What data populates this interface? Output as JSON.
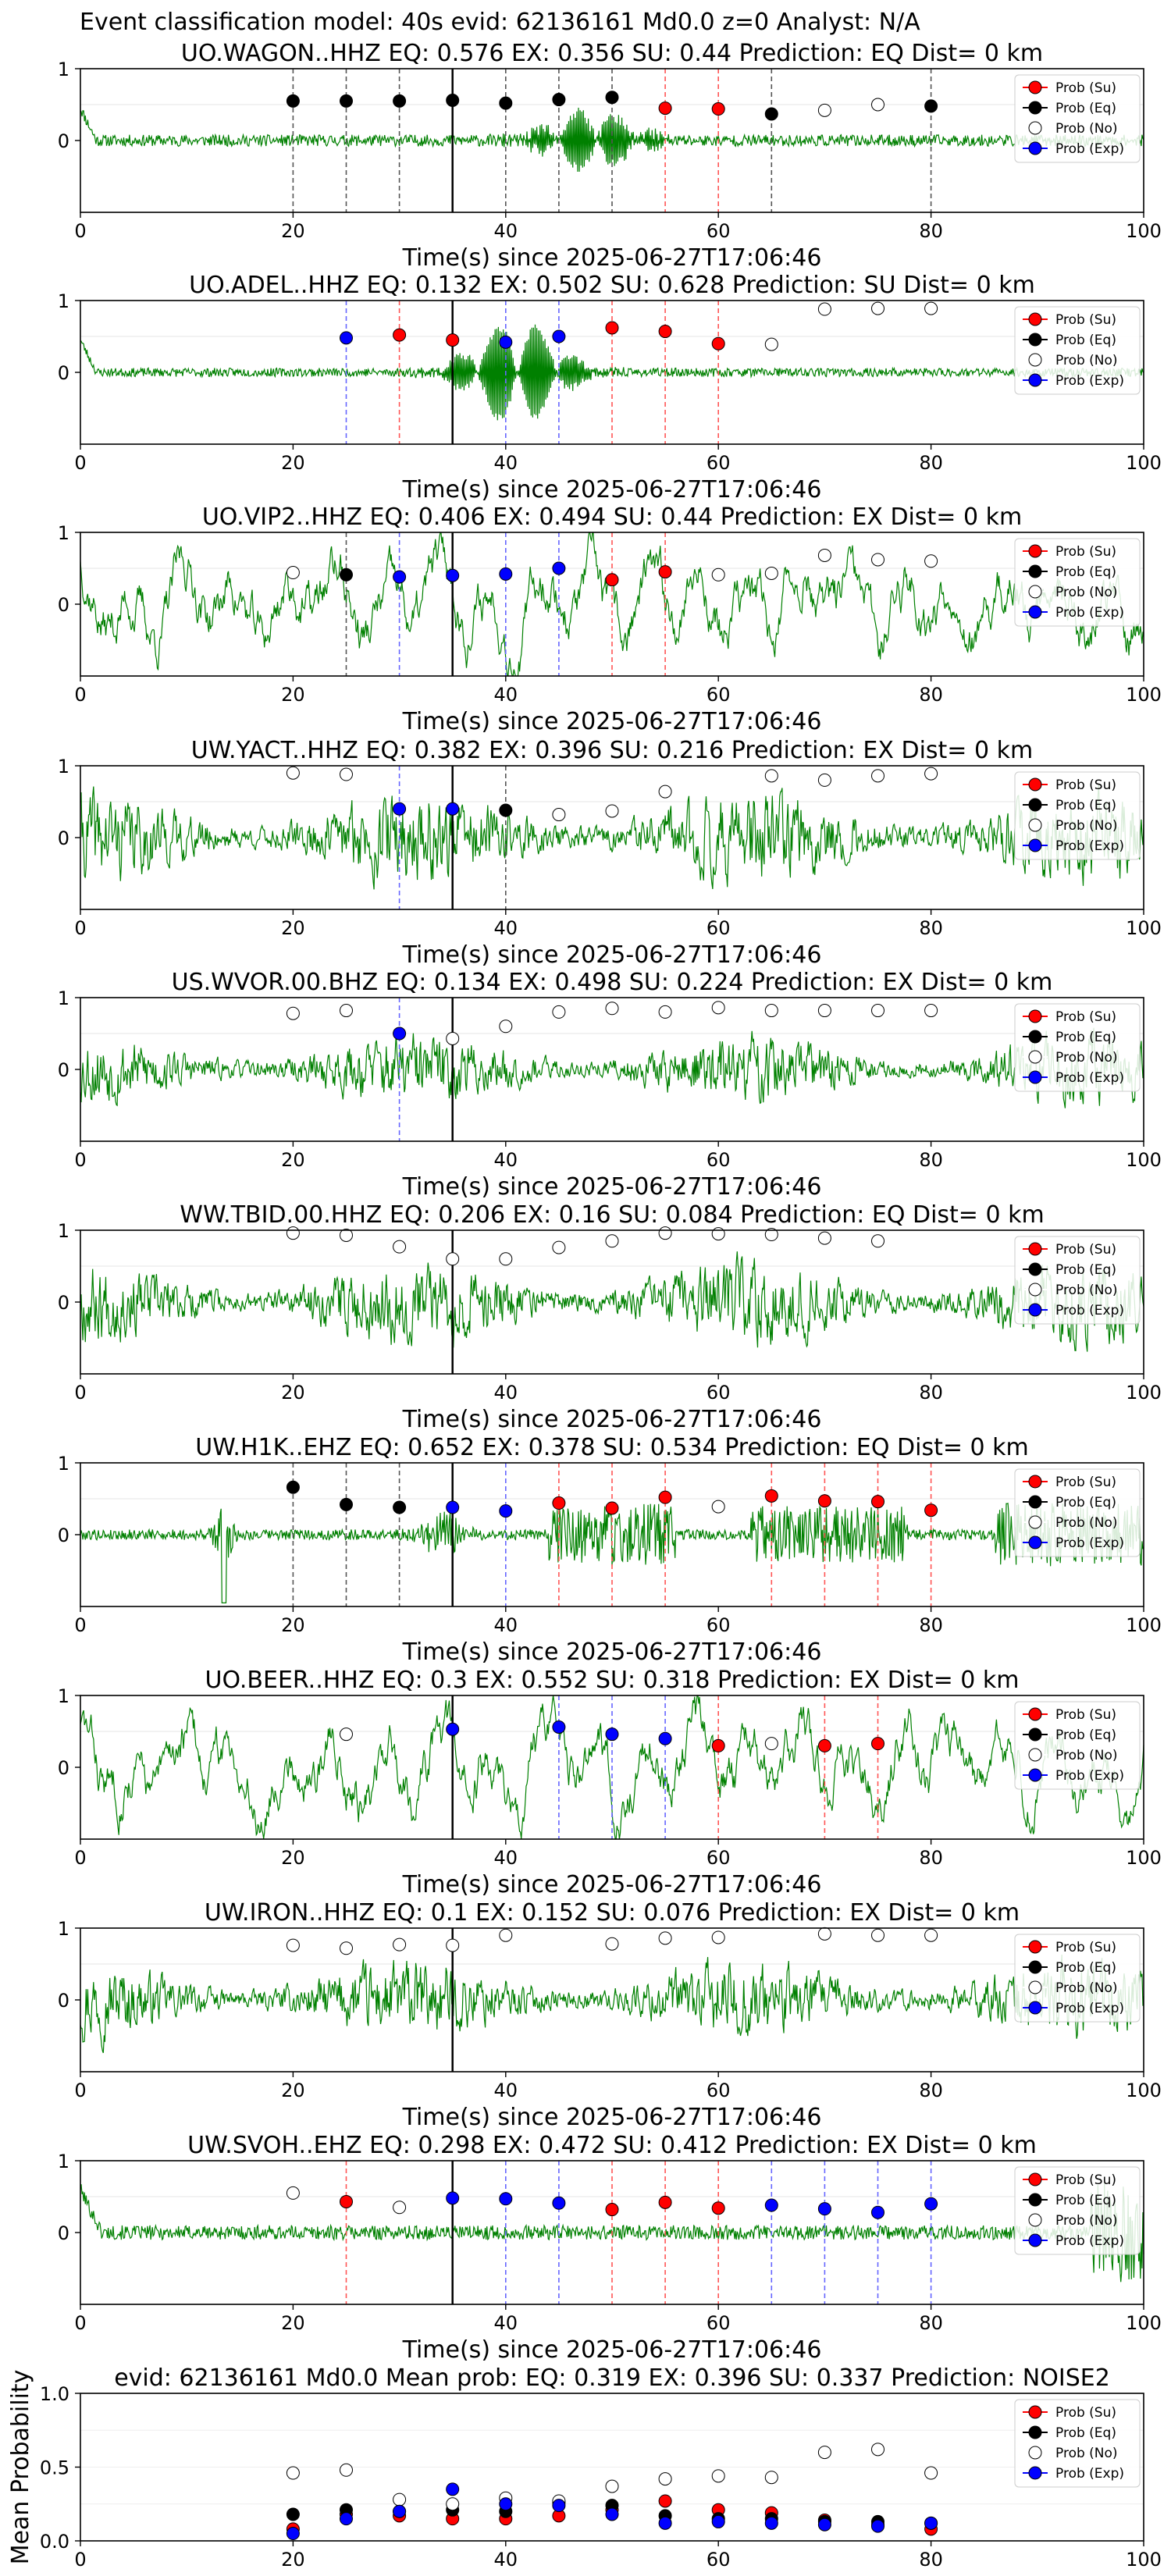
{
  "figure": {
    "title": "Event classification model: 40s evid: 62136161 Md0.0 z=0 Analyst: N/A",
    "x_label": "Time(s) since 2025-06-27T17:06:46",
    "colors": {
      "su": "#ff0000",
      "eq": "#000000",
      "no": "#ffffff",
      "exp": "#0000ff",
      "trace": "#008000"
    }
  },
  "legend_labels": [
    "Prob (Su)",
    "Prob (Eq)",
    "Prob (No)",
    "Prob (Exp)"
  ],
  "chart_data": [
    {
      "type": "scatter",
      "panel": "station",
      "title": "UO.WAGON..HHZ   EQ: 0.576  EX: 0.356  SU: 0.44   Prediction: EQ    Dist= 0 km",
      "xlim": [
        0,
        100
      ],
      "ylim": [
        -1,
        1
      ],
      "xticks": [
        0,
        20,
        40,
        60,
        80,
        100
      ],
      "yticks": [
        0,
        1
      ],
      "x": [
        20,
        25,
        30,
        35,
        40,
        45,
        50,
        55,
        60,
        65,
        70,
        75,
        80
      ],
      "classes": [
        "eq",
        "eq",
        "eq",
        "eq",
        "eq",
        "eq",
        "eq",
        "su",
        "su",
        "eq",
        "no",
        "no",
        "eq"
      ],
      "probs": [
        0.55,
        0.55,
        0.55,
        0.56,
        0.52,
        0.57,
        0.6,
        0.45,
        0.44,
        0.37,
        0.42,
        0.5,
        0.48
      ],
      "waveform": {
        "seed": 11,
        "style": "burst",
        "amp": 0.08,
        "burst_center": 48,
        "burst_amp": 0.4
      }
    },
    {
      "type": "scatter",
      "panel": "station",
      "title": "UO.ADEL..HHZ   EQ: 0.132  EX: 0.502  SU: 0.628   Prediction: SU    Dist= 0 km",
      "xlim": [
        0,
        100
      ],
      "ylim": [
        -1,
        1
      ],
      "xticks": [
        0,
        20,
        40,
        60,
        80,
        100
      ],
      "yticks": [
        0,
        1
      ],
      "x": [
        20,
        25,
        30,
        35,
        40,
        45,
        50,
        55,
        60,
        65,
        70,
        75,
        80
      ],
      "classes": [
        "",
        "exp",
        "su",
        "su",
        "exp",
        "exp",
        "su",
        "su",
        "su",
        "no",
        "no",
        "no",
        "no"
      ],
      "probs": [
        null,
        0.48,
        0.52,
        0.45,
        0.42,
        0.5,
        0.62,
        0.57,
        0.4,
        0.39,
        0.88,
        0.89,
        0.89
      ],
      "waveform": {
        "seed": 23,
        "style": "burst",
        "amp": 0.06,
        "burst_center": 41,
        "burst_amp": 0.7
      }
    },
    {
      "type": "scatter",
      "panel": "station",
      "title": "UO.VIP2..HHZ   EQ: 0.406  EX: 0.494  SU: 0.44   Prediction: EX    Dist= 0 km",
      "xlim": [
        0,
        100
      ],
      "ylim": [
        -1,
        1
      ],
      "xticks": [
        0,
        20,
        40,
        60,
        80,
        100
      ],
      "yticks": [
        0,
        1
      ],
      "x": [
        20,
        25,
        30,
        35,
        40,
        45,
        50,
        55,
        60,
        65,
        70,
        75,
        80
      ],
      "classes": [
        "no",
        "eq",
        "exp",
        "exp",
        "exp",
        "exp",
        "su",
        "su",
        "no",
        "no",
        "no",
        "no",
        "no"
      ],
      "probs": [
        0.44,
        0.41,
        0.38,
        0.4,
        0.42,
        0.5,
        0.34,
        0.45,
        0.41,
        0.43,
        0.68,
        0.62,
        0.6
      ],
      "waveform": {
        "seed": 37,
        "style": "slow",
        "amp": 0.45
      }
    },
    {
      "type": "scatter",
      "panel": "station",
      "title": "UW.YACT..HHZ   EQ: 0.382  EX: 0.396  SU: 0.216   Prediction: EX    Dist= 0 km",
      "xlim": [
        0,
        100
      ],
      "ylim": [
        -1,
        1
      ],
      "xticks": [
        0,
        20,
        40,
        60,
        80,
        100
      ],
      "yticks": [
        0,
        1
      ],
      "x": [
        20,
        25,
        30,
        35,
        40,
        45,
        50,
        55,
        60,
        65,
        70,
        75,
        80
      ],
      "classes": [
        "no",
        "no",
        "exp",
        "exp",
        "eq",
        "no",
        "no",
        "no",
        "",
        "no",
        "no",
        "no",
        "no"
      ],
      "probs": [
        0.9,
        0.88,
        0.4,
        0.4,
        0.38,
        0.32,
        0.37,
        0.64,
        null,
        0.86,
        0.8,
        0.86,
        0.89
      ],
      "waveform": {
        "seed": 41,
        "style": "noise",
        "amp": 0.45
      }
    },
    {
      "type": "scatter",
      "panel": "station",
      "title": "US.WVOR.00.BHZ   EQ: 0.134  EX: 0.498  SU: 0.224   Prediction: EX    Dist= 0 km",
      "xlim": [
        0,
        100
      ],
      "ylim": [
        -1,
        1
      ],
      "xticks": [
        0,
        20,
        40,
        60,
        80,
        100
      ],
      "yticks": [
        0,
        1
      ],
      "x": [
        20,
        25,
        30,
        35,
        40,
        45,
        50,
        55,
        60,
        65,
        70,
        75,
        80
      ],
      "classes": [
        "no",
        "no",
        "exp",
        "no",
        "no",
        "no",
        "no",
        "no",
        "no",
        "no",
        "no",
        "no",
        "no"
      ],
      "probs": [
        0.78,
        0.82,
        0.5,
        0.43,
        0.6,
        0.8,
        0.85,
        0.8,
        0.86,
        0.82,
        0.82,
        0.82,
        0.82
      ],
      "waveform": {
        "seed": 53,
        "style": "noise",
        "amp": 0.35
      }
    },
    {
      "type": "scatter",
      "panel": "station",
      "title": "WW.TBID.00.HHZ   EQ: 0.206  EX: 0.16  SU: 0.084   Prediction: EQ    Dist= 0 km",
      "xlim": [
        0,
        100
      ],
      "ylim": [
        -1,
        1
      ],
      "xticks": [
        0,
        20,
        40,
        60,
        80,
        100
      ],
      "yticks": [
        0,
        1
      ],
      "x": [
        20,
        25,
        30,
        35,
        40,
        45,
        50,
        55,
        60,
        65,
        70,
        75,
        80
      ],
      "classes": [
        "no",
        "no",
        "no",
        "no",
        "no",
        "no",
        "no",
        "no",
        "no",
        "no",
        "no",
        "no",
        ""
      ],
      "probs": [
        0.96,
        0.93,
        0.77,
        0.6,
        0.6,
        0.76,
        0.85,
        0.96,
        0.95,
        0.94,
        0.89,
        0.85,
        null
      ],
      "waveform": {
        "seed": 67,
        "style": "noise",
        "amp": 0.4
      }
    },
    {
      "type": "scatter",
      "panel": "station",
      "title": "UW.H1K..EHZ   EQ: 0.652  EX: 0.378  SU: 0.534   Prediction: EQ    Dist= 0 km",
      "xlim": [
        0,
        100
      ],
      "ylim": [
        -1,
        1
      ],
      "xticks": [
        0,
        20,
        40,
        60,
        80,
        100
      ],
      "yticks": [
        0,
        1
      ],
      "x": [
        20,
        25,
        30,
        35,
        40,
        45,
        50,
        55,
        60,
        65,
        70,
        75,
        80
      ],
      "classes": [
        "eq",
        "eq",
        "eq",
        "exp",
        "exp",
        "su",
        "su",
        "su",
        "no",
        "su",
        "su",
        "su",
        "su"
      ],
      "probs": [
        0.66,
        0.42,
        0.38,
        0.38,
        0.33,
        0.44,
        0.37,
        0.52,
        0.39,
        0.54,
        0.47,
        0.46,
        0.34
      ],
      "waveform": {
        "seed": 79,
        "style": "spiky",
        "amp": 0.3
      }
    },
    {
      "type": "scatter",
      "panel": "station",
      "title": "UO.BEER..HHZ   EQ: 0.3  EX: 0.552  SU: 0.318   Prediction: EX    Dist= 0 km",
      "xlim": [
        0,
        100
      ],
      "ylim": [
        -1,
        1
      ],
      "xticks": [
        0,
        20,
        40,
        60,
        80,
        100
      ],
      "yticks": [
        0,
        1
      ],
      "x": [
        20,
        25,
        30,
        35,
        40,
        45,
        50,
        55,
        60,
        65,
        70,
        75,
        80
      ],
      "classes": [
        "",
        "no",
        "",
        "exp",
        "",
        "exp",
        "exp",
        "exp",
        "su",
        "no",
        "su",
        "su",
        ""
      ],
      "probs": [
        null,
        0.46,
        null,
        0.53,
        null,
        0.56,
        0.46,
        0.4,
        0.3,
        0.33,
        0.3,
        0.33,
        null
      ],
      "waveform": {
        "seed": 83,
        "style": "slow",
        "amp": 0.4
      }
    },
    {
      "type": "scatter",
      "panel": "station",
      "title": "UW.IRON..HHZ   EQ: 0.1  EX: 0.152  SU: 0.076   Prediction: EX    Dist= 0 km",
      "xlim": [
        0,
        100
      ],
      "ylim": [
        -1,
        1
      ],
      "xticks": [
        0,
        20,
        40,
        60,
        80,
        100
      ],
      "yticks": [
        0,
        1
      ],
      "x": [
        20,
        25,
        30,
        35,
        40,
        45,
        50,
        55,
        60,
        65,
        70,
        75,
        80
      ],
      "classes": [
        "no",
        "no",
        "no",
        "no",
        "no",
        "",
        "no",
        "no",
        "no",
        "",
        "no",
        "no",
        "no"
      ],
      "probs": [
        0.76,
        0.72,
        0.77,
        0.76,
        0.9,
        null,
        0.78,
        0.86,
        0.87,
        null,
        0.92,
        0.9,
        0.9
      ],
      "waveform": {
        "seed": 97,
        "style": "noise",
        "amp": 0.38
      }
    },
    {
      "type": "scatter",
      "panel": "station",
      "title": "UW.SVOH..EHZ   EQ: 0.298  EX: 0.472  SU: 0.412   Prediction: EX    Dist= 0 km",
      "xlim": [
        0,
        100
      ],
      "ylim": [
        -1,
        1
      ],
      "xticks": [
        0,
        20,
        40,
        60,
        80,
        100
      ],
      "yticks": [
        0,
        1
      ],
      "x": [
        20,
        25,
        30,
        35,
        40,
        45,
        50,
        55,
        60,
        65,
        70,
        75,
        80
      ],
      "classes": [
        "no",
        "su",
        "no",
        "exp",
        "exp",
        "exp",
        "su",
        "su",
        "su",
        "exp",
        "exp",
        "exp",
        "exp"
      ],
      "probs": [
        0.55,
        0.43,
        0.35,
        0.48,
        0.47,
        0.41,
        0.32,
        0.42,
        0.34,
        0.38,
        0.33,
        0.28,
        0.4
      ],
      "waveform": {
        "seed": 101,
        "style": "low",
        "amp": 0.1
      }
    },
    {
      "type": "scatter",
      "panel": "mean",
      "title": "evid: 62136161  Md0.0   Mean prob:   EQ: 0.319  EX: 0.396  SU: 0.337   Prediction: NOISE2",
      "ylabel": "Mean Probability",
      "xlim": [
        0,
        100
      ],
      "ylim": [
        0,
        1
      ],
      "xticks": [
        0,
        20,
        40,
        60,
        80,
        100
      ],
      "yticks": [
        0.0,
        0.5,
        1.0
      ],
      "x": [
        20,
        25,
        30,
        35,
        40,
        45,
        50,
        55,
        60,
        65,
        70,
        75,
        80
      ],
      "series": [
        {
          "name": "Prob (Su)",
          "key": "su",
          "values": [
            0.08,
            0.18,
            0.17,
            0.15,
            0.15,
            0.17,
            0.21,
            0.27,
            0.21,
            0.19,
            0.14,
            0.11,
            0.08
          ]
        },
        {
          "name": "Prob (Eq)",
          "key": "eq",
          "values": [
            0.18,
            0.21,
            0.2,
            0.21,
            0.2,
            0.26,
            0.24,
            0.17,
            0.15,
            0.15,
            0.13,
            0.13,
            0.12
          ]
        },
        {
          "name": "Prob (No)",
          "key": "no",
          "values": [
            0.46,
            0.48,
            0.28,
            0.25,
            0.29,
            0.27,
            0.37,
            0.42,
            0.44,
            0.43,
            0.6,
            0.62,
            0.46
          ]
        },
        {
          "name": "Prob (Exp)",
          "key": "exp",
          "values": [
            0.05,
            0.15,
            0.2,
            0.35,
            0.25,
            0.24,
            0.18,
            0.12,
            0.13,
            0.12,
            0.11,
            0.1,
            0.12
          ]
        }
      ]
    }
  ]
}
